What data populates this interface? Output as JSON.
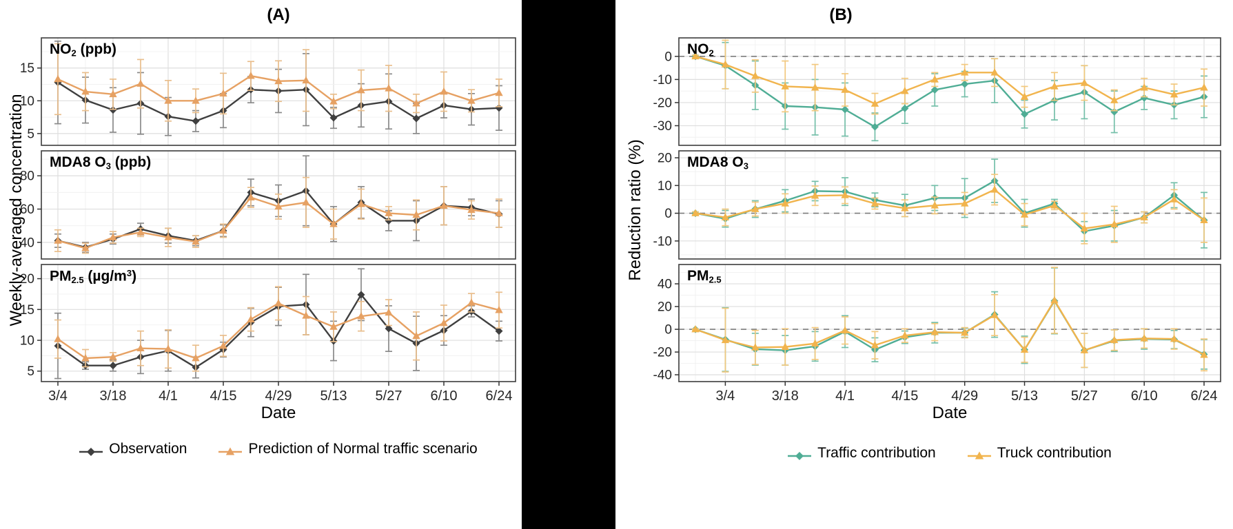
{
  "panel_a": {
    "title": "(A)",
    "y_axis_label": "Weekly-averaged concentration",
    "x_axis_label": "Date",
    "legend": [
      {
        "label": "Observation"
      },
      {
        "label": "Prediction of Normal traffic scenario"
      }
    ]
  },
  "panel_b": {
    "title": "(B)",
    "y_axis_label": "Reduction ratio (%)",
    "x_axis_label": "Date",
    "legend": [
      {
        "label": "Traffic contribution"
      },
      {
        "label": "Truck contribution"
      }
    ]
  },
  "chart_data": [
    {
      "id": "a-no2",
      "type": "line",
      "panel": "A",
      "label_segments": [
        {
          "t": "NO"
        },
        {
          "t": "2",
          "s": "sub"
        },
        {
          "t": " (ppb)"
        }
      ],
      "x": [
        "3/4",
        "3/11",
        "3/18",
        "3/25",
        "4/1",
        "4/8",
        "4/15",
        "4/22",
        "4/29",
        "5/6",
        "5/13",
        "5/20",
        "5/27",
        "6/3",
        "6/10",
        "6/17",
        "6/24"
      ],
      "x_tick_labels": [
        "3/4",
        "3/18",
        "4/1",
        "4/15",
        "4/29",
        "5/13",
        "5/27",
        "6/10",
        "6/24"
      ],
      "y_ticks": [
        5,
        10,
        15
      ],
      "ylim": [
        3.2,
        19.6
      ],
      "zero_line": false,
      "grid": true,
      "series": [
        {
          "name": "Observation",
          "marker": "diamond",
          "color": "#3F3F3F",
          "err_color": "#8A8A8A",
          "values": [
            12.8,
            10.1,
            8.6,
            9.6,
            7.6,
            6.9,
            8.5,
            11.7,
            11.5,
            11.7,
            7.4,
            9.3,
            9.9,
            7.3,
            9.3,
            8.7,
            8.9
          ],
          "err": [
            6.3,
            3.5,
            3.4,
            4.7,
            2.9,
            1.6,
            2.6,
            2.0,
            3.3,
            5.5,
            1.6,
            3.3,
            4.2,
            2.3,
            1.9,
            2.4,
            3.4
          ]
        },
        {
          "name": "Prediction of Normal traffic scenario",
          "marker": "triangle",
          "color": "#E6A163",
          "err_color": "#E9BE8C",
          "values": [
            13.3,
            11.4,
            11.0,
            12.6,
            10.0,
            10.0,
            11.1,
            13.8,
            13.0,
            13.1,
            9.9,
            11.6,
            11.9,
            9.6,
            11.4,
            10.0,
            11.2
          ],
          "err": [
            5.4,
            2.9,
            2.3,
            3.7,
            3.1,
            1.8,
            3.1,
            2.2,
            3.1,
            4.7,
            1.1,
            3.1,
            3.5,
            1.4,
            3.0,
            1.7,
            2.1
          ]
        }
      ]
    },
    {
      "id": "a-o3",
      "type": "line",
      "panel": "A",
      "label_segments": [
        {
          "t": "MDA8 O"
        },
        {
          "t": "3",
          "s": "sub"
        },
        {
          "t": " (ppb)"
        }
      ],
      "x": [
        "3/4",
        "3/11",
        "3/18",
        "3/25",
        "4/1",
        "4/8",
        "4/15",
        "4/22",
        "4/29",
        "5/6",
        "5/13",
        "5/20",
        "5/27",
        "6/3",
        "6/10",
        "6/17",
        "6/24"
      ],
      "x_tick_labels": [
        "3/4",
        "3/18",
        "4/1",
        "4/15",
        "4/29",
        "5/13",
        "5/27",
        "6/10",
        "6/24"
      ],
      "y_ticks": [
        40,
        60,
        80
      ],
      "ylim": [
        30,
        95
      ],
      "zero_line": false,
      "grid": true,
      "series": [
        {
          "name": "Observation",
          "marker": "diamond",
          "color": "#3F3F3F",
          "err_color": "#8A8A8A",
          "values": [
            41,
            37,
            42,
            48,
            44,
            41,
            47,
            70,
            65,
            71,
            51,
            64,
            53,
            53,
            62,
            61,
            57
          ],
          "err": [
            4,
            3,
            3,
            3.5,
            4.5,
            3,
            3.5,
            8,
            9.5,
            21,
            10.5,
            9.5,
            6,
            12,
            11.5,
            5,
            8
          ]
        },
        {
          "name": "Prediction of Normal traffic scenario",
          "marker": "triangle",
          "color": "#E6A163",
          "err_color": "#E9BE8C",
          "values": [
            41,
            36.5,
            43,
            46,
            43,
            40.5,
            47,
            67,
            61.5,
            64,
            51,
            63,
            57.5,
            56.5,
            62,
            59.5,
            57.5
          ],
          "err": [
            6.5,
            3,
            3.5,
            2.5,
            5.5,
            3.5,
            4,
            6,
            7.5,
            15,
            9,
            9,
            4,
            9,
            11.5,
            5.5,
            8.5
          ]
        }
      ]
    },
    {
      "id": "a-pm25",
      "type": "line",
      "panel": "A",
      "label_segments": [
        {
          "t": "PM"
        },
        {
          "t": "2.5",
          "s": "sub"
        },
        {
          "t": " (µg/m"
        },
        {
          "t": "3",
          "s": "sup"
        },
        {
          "t": ")"
        }
      ],
      "x": [
        "3/4",
        "3/11",
        "3/18",
        "3/25",
        "4/1",
        "4/8",
        "4/15",
        "4/22",
        "4/29",
        "5/6",
        "5/13",
        "5/20",
        "5/27",
        "6/3",
        "6/10",
        "6/17",
        "6/24"
      ],
      "x_tick_labels": [
        "3/4",
        "3/18",
        "4/1",
        "4/15",
        "4/29",
        "5/13",
        "5/27",
        "6/10",
        "6/24"
      ],
      "y_ticks": [
        5,
        10,
        15,
        20
      ],
      "ylim": [
        3.3,
        22.3
      ],
      "zero_line": false,
      "grid": true,
      "series": [
        {
          "name": "Observation",
          "marker": "diamond",
          "color": "#3F3F3F",
          "err_color": "#8A8A8A",
          "values": [
            9.1,
            5.9,
            5.9,
            7.3,
            8.3,
            5.6,
            8.5,
            12.9,
            15.5,
            15.8,
            9.9,
            17.4,
            11.9,
            9.5,
            11.6,
            14.7,
            11.5
          ],
          "err": [
            5.3,
            0.6,
            0.9,
            2.7,
            3.3,
            1.7,
            1.2,
            2.3,
            3.1,
            4.9,
            3.2,
            4.2,
            3.7,
            4.4,
            2.4,
            0.9,
            1.6
          ]
        },
        {
          "name": "Prediction of Normal traffic scenario",
          "marker": "triangle",
          "color": "#E6A163",
          "err_color": "#E9BE8C",
          "values": [
            10.2,
            7.1,
            7.3,
            8.7,
            8.6,
            7.1,
            9.1,
            13.4,
            16.0,
            14.0,
            12.2,
            13.9,
            14.5,
            10.7,
            12.8,
            16.1,
            14.9
          ],
          "err": [
            3.1,
            1.4,
            0.7,
            2.8,
            3.1,
            2.1,
            1.7,
            1.9,
            2.7,
            3.1,
            2.4,
            2.4,
            2.1,
            3.9,
            2.9,
            1.5,
            2.9
          ]
        }
      ]
    },
    {
      "id": "b-no2",
      "type": "line",
      "panel": "B",
      "label_segments": [
        {
          "t": "NO"
        },
        {
          "t": "2",
          "s": "sub"
        }
      ],
      "x": [
        "2/25",
        "3/4",
        "3/11",
        "3/18",
        "3/25",
        "4/1",
        "4/8",
        "4/15",
        "4/22",
        "4/29",
        "5/6",
        "5/13",
        "5/20",
        "5/27",
        "6/3",
        "6/10",
        "6/17",
        "6/24"
      ],
      "x_tick_labels": [
        "3/4",
        "3/18",
        "4/1",
        "4/15",
        "4/29",
        "5/13",
        "5/27",
        "6/10",
        "6/24"
      ],
      "y_ticks": [
        -30,
        -20,
        -10,
        0
      ],
      "ylim": [
        -38.5,
        8
      ],
      "zero_line": true,
      "grid": true,
      "series": [
        {
          "name": "Traffic contribution",
          "marker": "diamond",
          "color": "#4FAD95",
          "err_color": "#74BFA9",
          "values": [
            0,
            -4,
            -12.5,
            -21.5,
            -22,
            -23,
            -30.5,
            -22.5,
            -14.5,
            -12,
            -10.5,
            -25,
            -19,
            -15.5,
            -24,
            -18,
            -21,
            -17.5
          ],
          "err": [
            0.5,
            10,
            10.5,
            10,
            12,
            11.5,
            6,
            6.5,
            7,
            5.5,
            9.5,
            6,
            8.5,
            11.5,
            9,
            5,
            6,
            9
          ]
        },
        {
          "name": "Truck contribution",
          "marker": "triangle",
          "color": "#F1B44D",
          "err_color": "#F2C87E",
          "values": [
            0,
            -3.5,
            -8.5,
            -13,
            -13.5,
            -14.5,
            -20.5,
            -15,
            -10,
            -7,
            -7,
            -17.5,
            -13,
            -11.5,
            -19,
            -13.5,
            -16.5,
            -13.5
          ],
          "err": [
            0.5,
            10.5,
            7,
            11,
            10,
            7,
            4.5,
            5.5,
            3,
            3.5,
            6,
            4.5,
            6,
            7.5,
            4.5,
            4,
            4.5,
            8
          ]
        }
      ]
    },
    {
      "id": "b-o3",
      "type": "line",
      "panel": "B",
      "label_segments": [
        {
          "t": "MDA8 O"
        },
        {
          "t": "3",
          "s": "sub"
        }
      ],
      "x": [
        "2/25",
        "3/4",
        "3/11",
        "3/18",
        "3/25",
        "4/1",
        "4/8",
        "4/15",
        "4/22",
        "4/29",
        "5/6",
        "5/13",
        "5/20",
        "5/27",
        "6/3",
        "6/10",
        "6/17",
        "6/24"
      ],
      "x_tick_labels": [
        "3/4",
        "3/18",
        "4/1",
        "4/15",
        "4/29",
        "5/13",
        "5/27",
        "6/10",
        "6/24"
      ],
      "y_ticks": [
        -10,
        0,
        10,
        20
      ],
      "ylim": [
        -16.5,
        22.5
      ],
      "zero_line": true,
      "grid": true,
      "series": [
        {
          "name": "Traffic contribution",
          "marker": "diamond",
          "color": "#4FAD95",
          "err_color": "#74BFA9",
          "values": [
            0,
            -2,
            1.5,
            4.5,
            8,
            7.8,
            4.8,
            2.8,
            5.5,
            5.5,
            11.7,
            0,
            3.5,
            -6.5,
            -4.5,
            -1.5,
            6.5,
            -2.5
          ],
          "err": [
            0.5,
            3,
            3,
            4,
            3.5,
            5,
            2.5,
            4,
            4.5,
            7,
            7.8,
            5,
            1.5,
            3.5,
            5.5,
            2,
            4.5,
            10
          ]
        },
        {
          "name": "Truck contribution",
          "marker": "triangle",
          "color": "#F1B44D",
          "err_color": "#F2C87E",
          "values": [
            0,
            -1.5,
            1.5,
            3.5,
            6.3,
            6.5,
            3.5,
            1.8,
            2.8,
            3.5,
            8.5,
            -0.5,
            2.8,
            -5.5,
            -4,
            -1.5,
            5,
            -2.5
          ],
          "err": [
            0.5,
            3,
            2.5,
            3.5,
            3.5,
            3,
            2,
            3,
            3,
            4,
            5.5,
            4,
            1.5,
            5.5,
            6.5,
            2,
            3.5,
            8
          ]
        }
      ]
    },
    {
      "id": "b-pm25",
      "type": "line",
      "panel": "B",
      "label_segments": [
        {
          "t": "PM"
        },
        {
          "t": "2.5",
          "s": "sub"
        }
      ],
      "x": [
        "2/25",
        "3/4",
        "3/11",
        "3/18",
        "3/25",
        "4/1",
        "4/8",
        "4/15",
        "4/22",
        "4/29",
        "5/6",
        "5/13",
        "5/20",
        "5/27",
        "6/3",
        "6/10",
        "6/17",
        "6/24"
      ],
      "x_tick_labels": [
        "3/4",
        "3/18",
        "4/1",
        "4/15",
        "4/29",
        "5/13",
        "5/27",
        "6/10",
        "6/24"
      ],
      "y_ticks": [
        -40,
        -20,
        0,
        20,
        40
      ],
      "ylim": [
        -46,
        57
      ],
      "zero_line": true,
      "grid": true,
      "series": [
        {
          "name": "Traffic contribution",
          "marker": "diamond",
          "color": "#4FAD95",
          "err_color": "#74BFA9",
          "values": [
            0,
            -9,
            -17.5,
            -18.5,
            -15,
            -2,
            -18,
            -7,
            -3,
            -3,
            13,
            -18,
            25,
            -18.5,
            -10,
            -8.5,
            -9,
            -22
          ],
          "err": [
            0.5,
            28,
            14,
            13,
            13,
            14,
            10.5,
            5.5,
            9,
            4,
            20,
            12,
            29,
            15,
            9.5,
            9,
            8,
            13
          ]
        },
        {
          "name": "Truck contribution",
          "marker": "triangle",
          "color": "#F1B44D",
          "err_color": "#F2C87E",
          "values": [
            0,
            -9.5,
            -16,
            -15.5,
            -12.5,
            -1,
            -14,
            -5.5,
            -2.5,
            -3,
            12.5,
            -18,
            25.5,
            -18.5,
            -9.5,
            -8,
            -8.5,
            -22.5
          ],
          "err": [
            0.5,
            28,
            15,
            16,
            14,
            12,
            12,
            6,
            7.5,
            4.5,
            18,
            11,
            29,
            15,
            9,
            8.5,
            9,
            14
          ]
        }
      ]
    }
  ]
}
